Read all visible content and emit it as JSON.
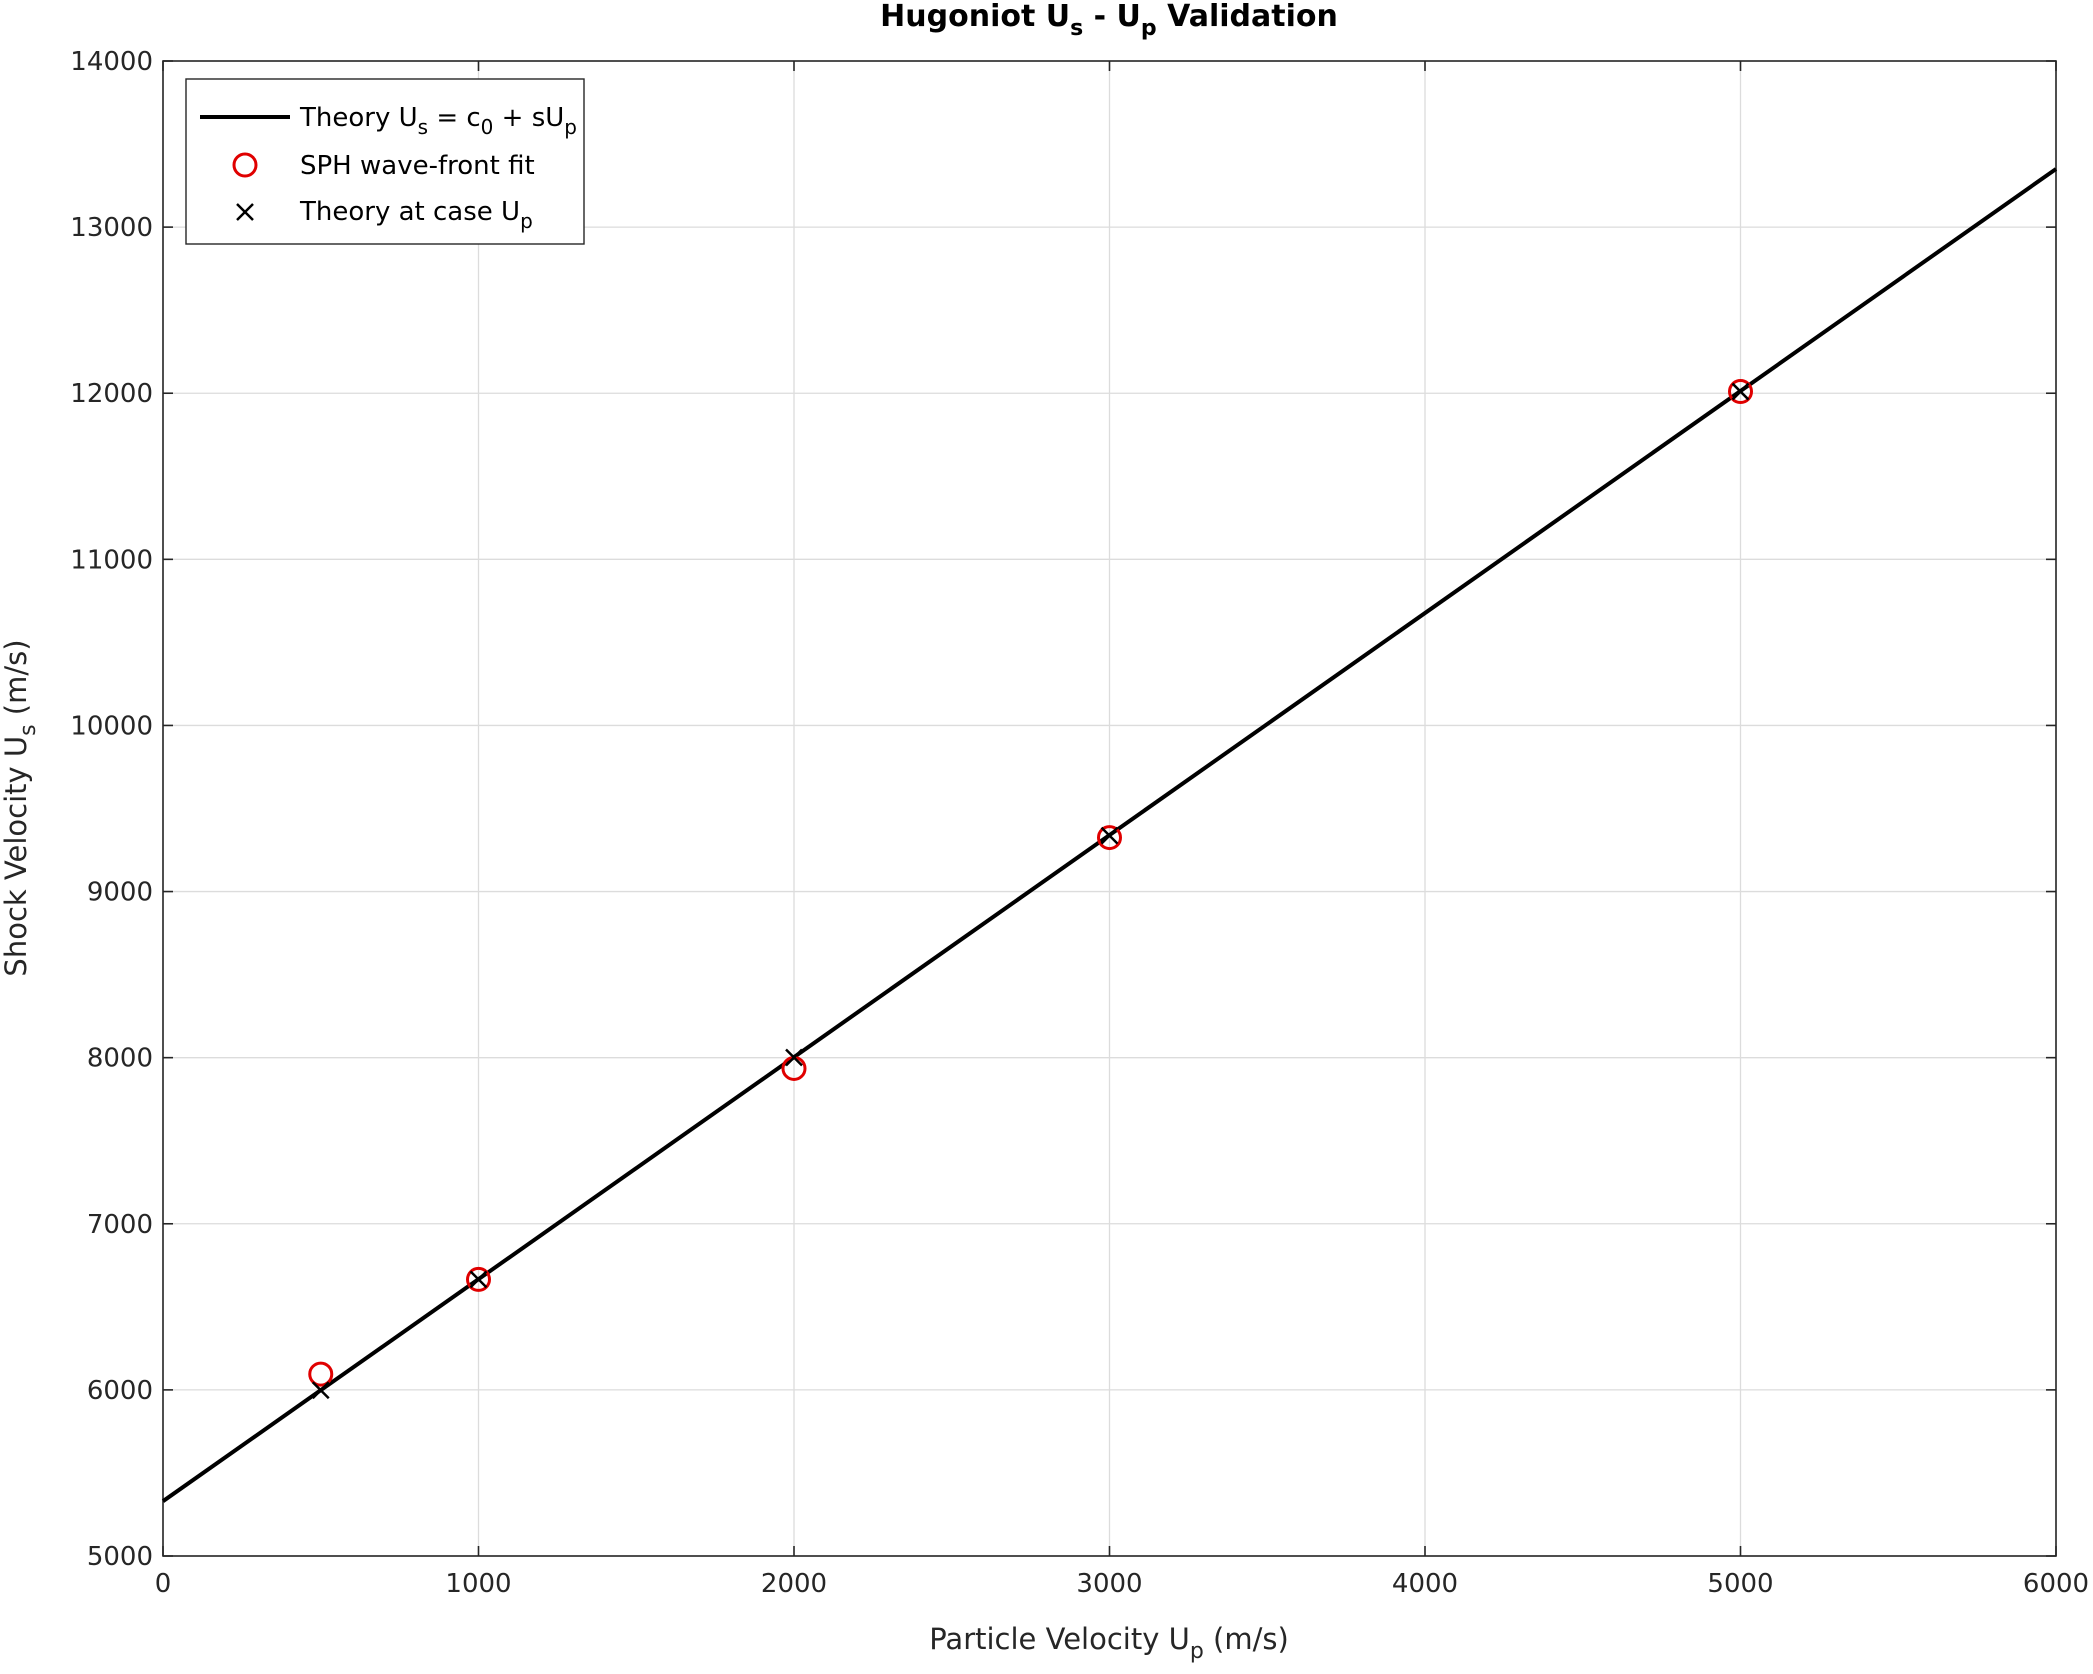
{
  "chart_data": {
    "type": "line",
    "title": "Hugoniot U_s - U_p Validation",
    "title_parts": {
      "pre": "Hugoniot U",
      "sub1": "s",
      "mid": " - U",
      "sub2": "p",
      "post": " Validation"
    },
    "xlabel_parts": {
      "pre": "Particle Velocity U",
      "sub": "p",
      "post": " (m/s)"
    },
    "ylabel_parts": {
      "pre": "Shock Velocity U",
      "sub": "s",
      "post": " (m/s)"
    },
    "xlim": [
      0,
      6000
    ],
    "ylim": [
      5000,
      14000
    ],
    "xticks": [
      "0",
      "1000",
      "2000",
      "3000",
      "4000",
      "5000",
      "6000"
    ],
    "yticks": [
      "5000",
      "6000",
      "7000",
      "8000",
      "9000",
      "10000",
      "11000",
      "12000",
      "13000",
      "14000"
    ],
    "grid": true,
    "legend_position": "top-left",
    "series": [
      {
        "name": "Theory U_s = c_0 + sU_p",
        "legend_parts": {
          "pre": "Theory U",
          "sub1": "s",
          "mid": " = c",
          "sub2": "0",
          "post": " + sU",
          "sub3": "p"
        },
        "kind": "line",
        "color": "#000000",
        "x": [
          0,
          6000
        ],
        "y": [
          5330,
          13350
        ]
      },
      {
        "name": "SPH wave-front fit",
        "legend_parts": {
          "pre": "SPH wave-front fit"
        },
        "kind": "circle",
        "color": "#e00000",
        "x": [
          500,
          1000,
          2000,
          3000,
          5000
        ],
        "y": [
          6095,
          6665,
          7935,
          9325,
          12010
        ]
      },
      {
        "name": "Theory at case U_p",
        "legend_parts": {
          "pre": "Theory at case U",
          "sub": "p"
        },
        "kind": "cross",
        "color": "#000000",
        "x": [
          500,
          1000,
          2000,
          3000,
          5000
        ],
        "y": [
          5998,
          6665,
          8001,
          9337,
          12010
        ]
      }
    ]
  }
}
